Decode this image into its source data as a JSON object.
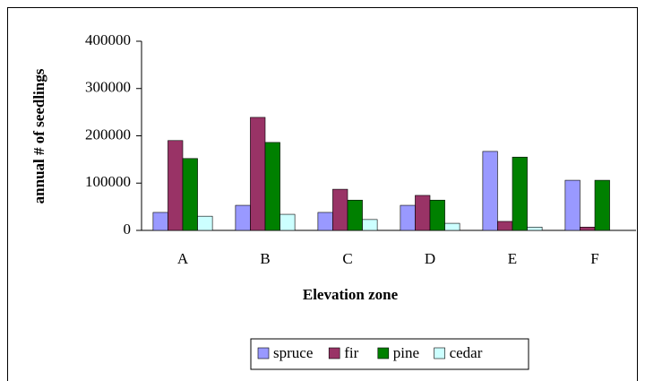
{
  "chart_data": {
    "type": "bar",
    "x_label": "Elevation zone",
    "y_label": "annual # of seedlings",
    "categories": [
      "A",
      "B",
      "C",
      "D",
      "E",
      "F"
    ],
    "series": [
      {
        "name": "spruce",
        "color": "#9999ff",
        "values": [
          38000,
          53000,
          38000,
          53000,
          167000,
          106000
        ]
      },
      {
        "name": "fir",
        "color": "#993366",
        "values": [
          190000,
          239000,
          87000,
          74000,
          19000,
          7000
        ]
      },
      {
        "name": "pine",
        "color": "#008000",
        "values": [
          152000,
          186000,
          64000,
          64000,
          155000,
          106000
        ]
      },
      {
        "name": "cedar",
        "color": "#ccffff",
        "values": [
          30000,
          34000,
          23000,
          15000,
          7000,
          0
        ]
      }
    ],
    "ylim": [
      0,
      400000
    ],
    "yticks": [
      0,
      100000,
      200000,
      300000,
      400000
    ],
    "grid": false,
    "legend": "bottom"
  }
}
